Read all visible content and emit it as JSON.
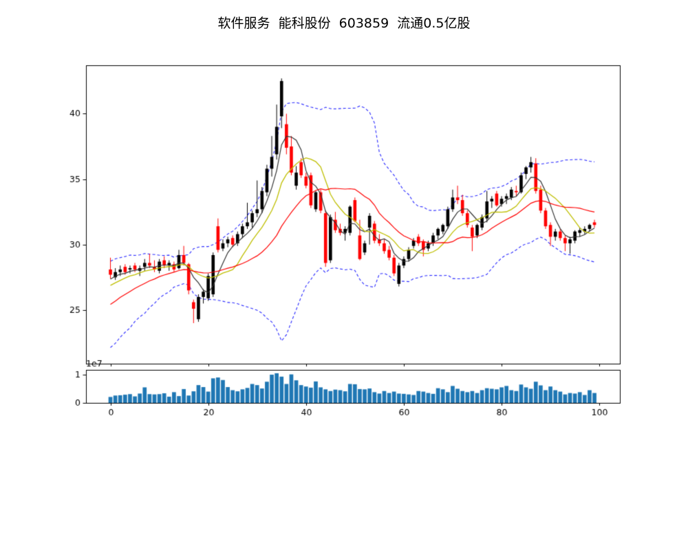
{
  "title": "软件服务  能科股份  603859  流通0.5亿股",
  "chart_data": {
    "type": "candlestick",
    "title": "软件服务  能科股份  603859  流通0.5亿股",
    "legend": "none",
    "grid": false,
    "panels": [
      "price-kline-with-ma-and-bollinger",
      "volume-bars"
    ],
    "ohlc": {
      "open": [
        28.1,
        27.5,
        27.9,
        28.3,
        28.1,
        28.4,
        28.0,
        28.3,
        28.6,
        28.3,
        28.0,
        28.8,
        28.4,
        28.5,
        28.2,
        29.2,
        28.5,
        25.6,
        24.3,
        26.0,
        25.9,
        26.2,
        31.4,
        29.7,
        30.1,
        30.5,
        30.1,
        30.8,
        31.4,
        31.7,
        32.4,
        32.7,
        34.0,
        35.8,
        36.9,
        39.8,
        39.2,
        37.5,
        34.5,
        36.3,
        35.2,
        35.3,
        32.7,
        34.0,
        32.4,
        28.8,
        31.9,
        31.2,
        30.9,
        30.9,
        33.4,
        30.7,
        29.4,
        31.3,
        31.6,
        30.4,
        30.1,
        29.6,
        29.0,
        27.0,
        28.4,
        28.9,
        29.9,
        30.6,
        30.2,
        29.7,
        30.1,
        30.7,
        31.0,
        31.4,
        32.7,
        33.6,
        33.4,
        32.4,
        31.3,
        30.7,
        31.3,
        32.0,
        33.3,
        33.9,
        33.1,
        33.5,
        33.6,
        34.1,
        34.0,
        35.4,
        35.9,
        36.2,
        34.2,
        32.6,
        31.5,
        30.6,
        31.0,
        30.5,
        30.1,
        30.3,
        30.9,
        31.0,
        31.2,
        31.7
      ],
      "high": [
        29.0,
        28.2,
        28.4,
        28.5,
        28.4,
        28.6,
        28.4,
        28.9,
        29.3,
        28.8,
        28.9,
        29.1,
        28.8,
        28.7,
        29.6,
        29.9,
        28.6,
        25.8,
        26.2,
        26.6,
        27.8,
        29.4,
        32.0,
        30.4,
        30.6,
        30.7,
        31.0,
        31.6,
        33.2,
        32.6,
        34.9,
        34.4,
        36.1,
        38.3,
        40.7,
        42.7,
        40.0,
        38.3,
        36.0,
        36.6,
        35.5,
        35.5,
        34.1,
        34.2,
        32.6,
        32.3,
        32.5,
        31.6,
        31.4,
        33.0,
        33.6,
        31.9,
        30.3,
        32.4,
        31.8,
        30.8,
        30.4,
        29.9,
        29.2,
        28.6,
        29.1,
        29.8,
        30.5,
        30.8,
        30.4,
        30.3,
        30.9,
        31.3,
        31.6,
        32.9,
        34.2,
        34.5,
        33.8,
        32.6,
        31.5,
        31.6,
        32.3,
        34.1,
        33.7,
        34.1,
        33.7,
        33.9,
        34.4,
        34.5,
        35.5,
        36.0,
        36.7,
        36.6,
        34.5,
        32.8,
        31.7,
        31.2,
        31.2,
        30.7,
        30.6,
        31.1,
        31.3,
        31.4,
        31.6,
        31.9
      ],
      "low": [
        27.4,
        27.3,
        27.6,
        27.7,
        27.8,
        27.9,
        27.6,
        28.0,
        28.2,
        27.9,
        27.8,
        28.2,
        28.0,
        27.9,
        28.1,
        28.4,
        26.2,
        24.0,
        24.1,
        25.5,
        25.7,
        26.0,
        29.4,
        29.5,
        29.8,
        29.8,
        29.9,
        30.5,
        31.2,
        31.3,
        32.1,
        32.4,
        33.7,
        35.2,
        36.5,
        38.9,
        36.9,
        35.3,
        34.2,
        35.1,
        34.3,
        32.8,
        32.5,
        32.4,
        28.3,
        28.6,
        30.9,
        30.7,
        30.3,
        30.7,
        31.7,
        28.8,
        29.2,
        30.0,
        30.1,
        29.9,
        29.3,
        28.8,
        27.6,
        26.8,
        28.2,
        28.7,
        29.7,
        29.9,
        29.1,
        29.5,
        29.9,
        30.4,
        30.8,
        31.2,
        32.5,
        33.1,
        32.2,
        31.3,
        29.5,
        30.5,
        31.1,
        31.7,
        32.8,
        32.9,
        32.9,
        33.1,
        33.4,
        33.7,
        33.9,
        35.0,
        35.5,
        33.9,
        32.4,
        31.2,
        29.9,
        30.3,
        30.3,
        29.5,
        29.3,
        30.1,
        30.6,
        30.8,
        31.0,
        31.3
      ],
      "close": [
        27.7,
        27.9,
        28.1,
        27.9,
        28.2,
        28.1,
        28.2,
        28.6,
        28.4,
        28.1,
        28.7,
        28.4,
        28.6,
        28.1,
        29.2,
        28.6,
        26.5,
        25.1,
        26.0,
        26.4,
        27.6,
        29.2,
        29.6,
        30.1,
        30.4,
        30.0,
        30.8,
        31.4,
        31.7,
        32.4,
        32.7,
        34.1,
        35.8,
        36.7,
        39.0,
        42.5,
        37.4,
        35.5,
        35.5,
        35.3,
        34.5,
        33.0,
        34.0,
        32.6,
        28.6,
        32.1,
        31.1,
        30.9,
        31.2,
        32.9,
        31.8,
        28.9,
        30.1,
        32.2,
        30.3,
        30.1,
        29.5,
        29.0,
        27.8,
        28.4,
        28.9,
        29.6,
        30.3,
        30.1,
        29.6,
        30.1,
        30.7,
        31.2,
        31.5,
        32.7,
        33.6,
        33.4,
        32.4,
        31.5,
        30.6,
        31.5,
        32.1,
        33.3,
        33.5,
        33.0,
        33.5,
        33.7,
        34.2,
        34.0,
        35.3,
        35.9,
        36.3,
        34.1,
        32.6,
        31.4,
        30.6,
        31.0,
        30.5,
        30.1,
        30.4,
        31.0,
        31.1,
        31.2,
        31.5,
        31.5
      ]
    },
    "volume_1e7": [
      0.21,
      0.26,
      0.27,
      0.29,
      0.31,
      0.23,
      0.33,
      0.55,
      0.31,
      0.3,
      0.31,
      0.34,
      0.22,
      0.38,
      0.24,
      0.49,
      0.26,
      0.41,
      0.63,
      0.56,
      0.4,
      0.87,
      0.9,
      0.81,
      0.56,
      0.45,
      0.41,
      0.48,
      0.53,
      0.67,
      0.63,
      0.51,
      0.75,
      1.0,
      1.05,
      0.93,
      0.67,
      1.01,
      0.8,
      0.63,
      0.58,
      0.54,
      0.76,
      0.55,
      0.48,
      0.42,
      0.47,
      0.45,
      0.41,
      0.67,
      0.66,
      0.49,
      0.48,
      0.51,
      0.38,
      0.33,
      0.42,
      0.35,
      0.4,
      0.33,
      0.32,
      0.3,
      0.28,
      0.42,
      0.4,
      0.35,
      0.32,
      0.52,
      0.48,
      0.38,
      0.6,
      0.5,
      0.42,
      0.38,
      0.42,
      0.35,
      0.45,
      0.52,
      0.5,
      0.48,
      0.55,
      0.6,
      0.45,
      0.42,
      0.65,
      0.55,
      0.5,
      0.75,
      0.62,
      0.45,
      0.58,
      0.45,
      0.4,
      0.3,
      0.35,
      0.33,
      0.38,
      0.28,
      0.45,
      0.35
    ],
    "prehistory_closes": [
      22.3,
      22.8,
      22.5,
      23.3,
      23.7,
      23.5,
      24.3,
      24.8,
      24.5,
      25.3,
      25.1,
      25.9,
      26.3,
      26.0,
      26.7,
      27.1,
      26.8,
      27.3,
      27.6,
      27.4
    ],
    "overlays": {
      "ma_windows": [
        5,
        10,
        20
      ],
      "bollinger_window": 20,
      "bollinger_k": 2
    },
    "axes": {
      "price": {
        "ticks": [
          25,
          30,
          35,
          40
        ],
        "ylim": [
          20.9,
          43.7
        ]
      },
      "volume": {
        "ticks": [
          0,
          1
        ],
        "offset_label": "1e7",
        "ylim_1e7": [
          0,
          1.17
        ]
      },
      "x": {
        "ticks": [
          0,
          20,
          40,
          60,
          80,
          100
        ],
        "xlim": [
          -5,
          104.2
        ]
      }
    },
    "colors": {
      "up": "#000000",
      "down": "#ff0000",
      "ma_fast": "#333333",
      "ma_mid": "#bfbf00",
      "ma_slow": "#ff0000",
      "band": "#2a2aff",
      "volume": "#1f77b4",
      "axis": "#000000",
      "background": "#ffffff"
    }
  }
}
